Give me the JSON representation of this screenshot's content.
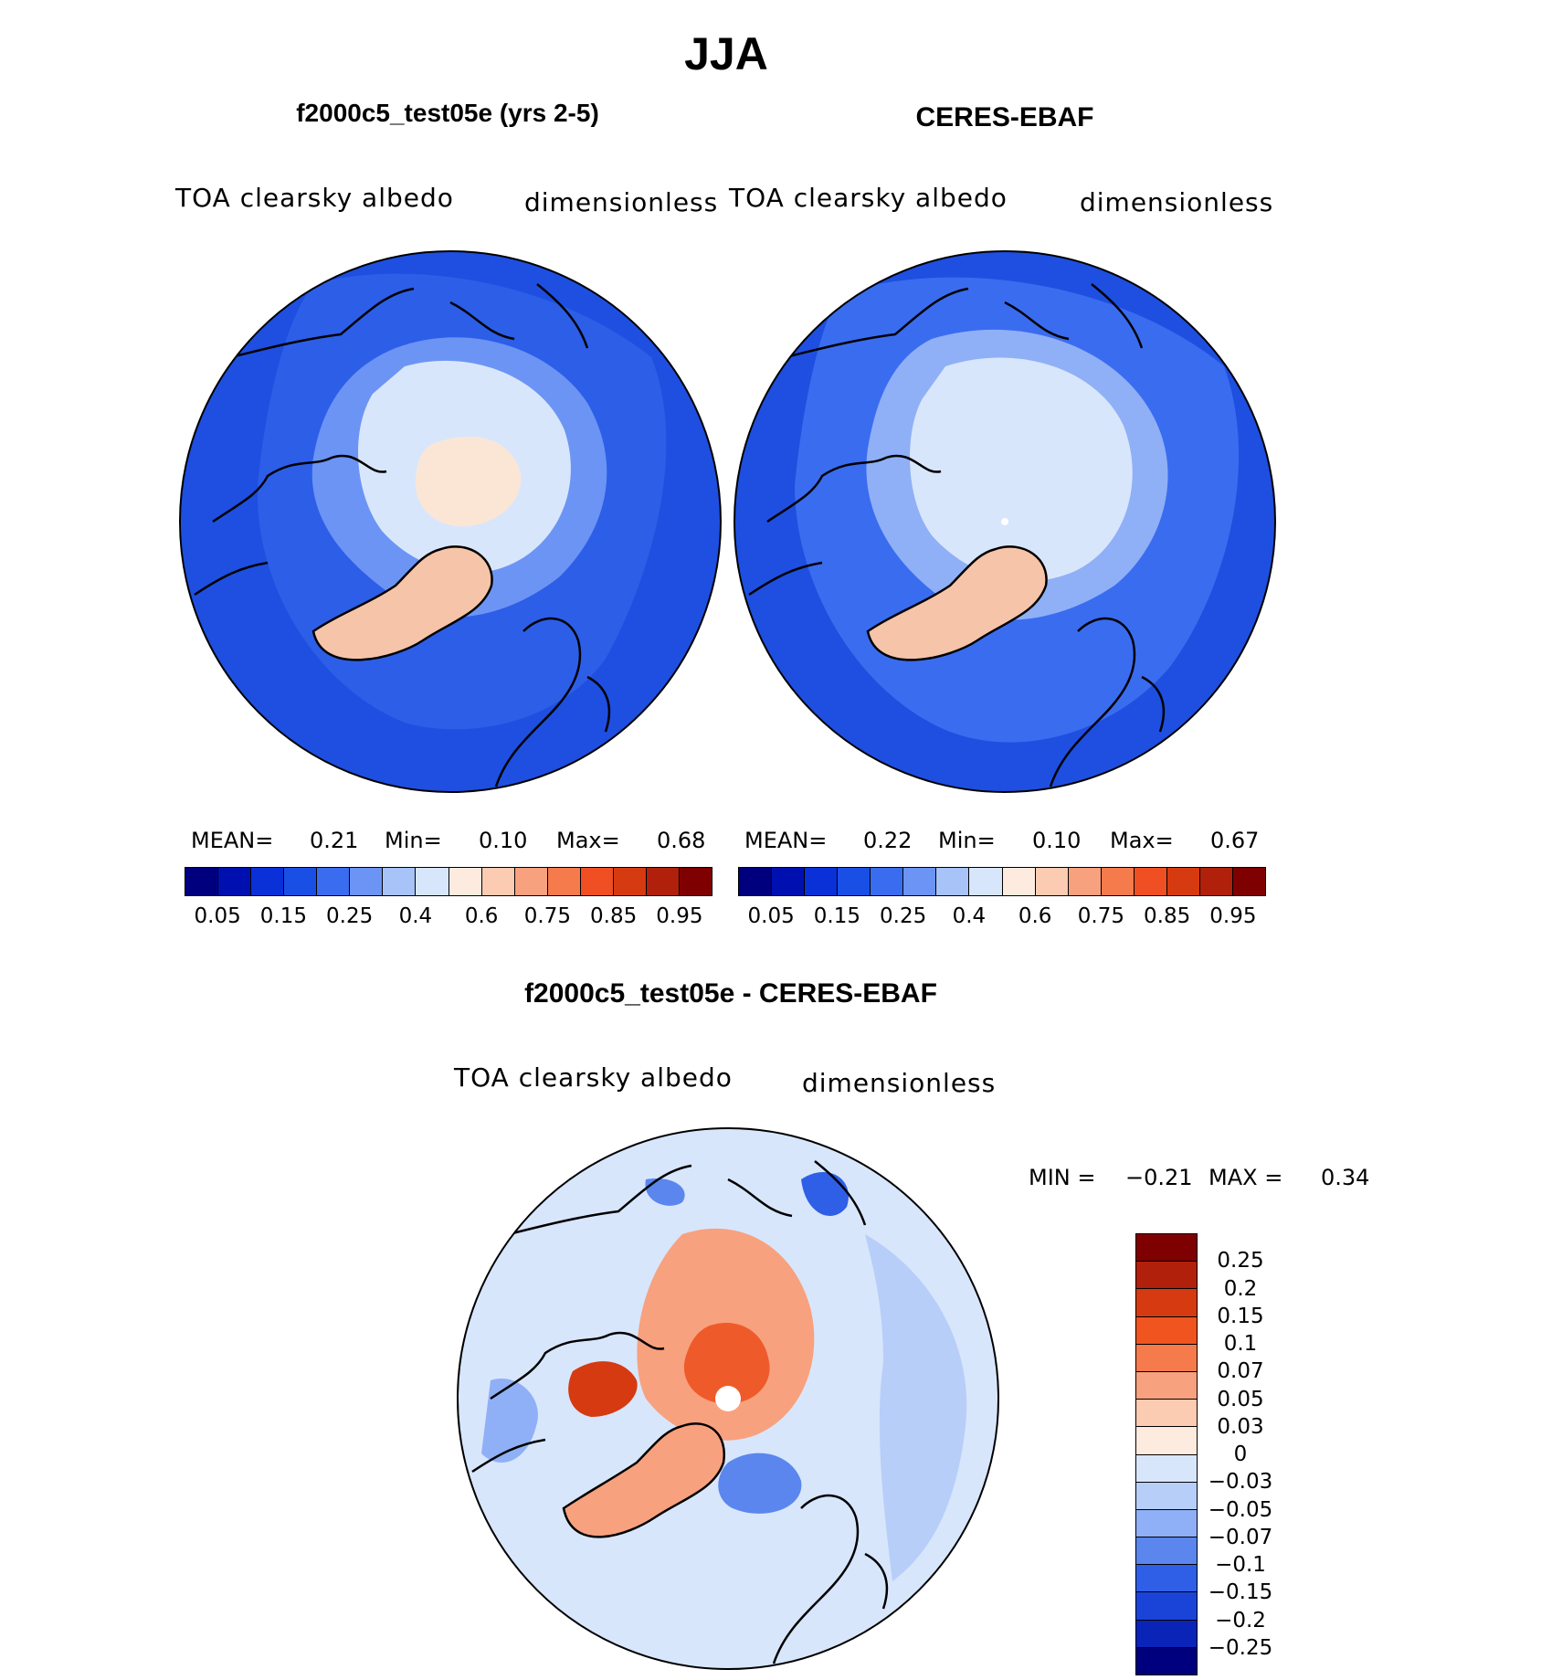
{
  "figure": {
    "season": "JJA",
    "colors": {
      "coastline": "#000000",
      "pole_dot": "#ffffff",
      "low_blue": "#1e4fe0",
      "mid_blue": "#5a8cf2",
      "pale_blue": "#d8e8fb",
      "cream": "#fbe9dc",
      "salmon": "#f6c4a8"
    }
  },
  "panels": [
    {
      "id": "model",
      "title": "f2000c5_test05e (yrs 2-5)",
      "variable": "TOA clearsky albedo",
      "units": "dimensionless",
      "stats": {
        "mean_label": "MEAN=",
        "mean": "0.21",
        "min_label": "Min=",
        "min": "0.10",
        "max_label": "Max=",
        "max": "0.68"
      }
    },
    {
      "id": "obs",
      "title": "CERES-EBAF",
      "variable": "TOA clearsky albedo",
      "units": "dimensionless",
      "stats": {
        "mean_label": "MEAN=",
        "mean": "0.22",
        "min_label": "Min=",
        "min": "0.10",
        "max_label": "Max=",
        "max": "0.67"
      }
    }
  ],
  "abs_colorbar": {
    "colors": [
      "#00007f",
      "#0010b0",
      "#0a30d8",
      "#1a4fe6",
      "#3a6cf0",
      "#6b94f4",
      "#a7c3f8",
      "#d8e6fc",
      "#fdebe0",
      "#fbcbb2",
      "#f8a17e",
      "#f57a4c",
      "#ef4f22",
      "#d63a10",
      "#b0200a",
      "#7f0000"
    ],
    "tick_labels": [
      "0.05",
      "0.15",
      "0.25",
      "0.4",
      "0.6",
      "0.75",
      "0.85",
      "0.95"
    ]
  },
  "diff_panel": {
    "title": "f2000c5_test05e - CERES-EBAF",
    "variable": "TOA clearsky albedo",
    "units": "dimensionless",
    "stats": {
      "min_label": "MIN =",
      "min": "−0.21",
      "max_label": "MAX =",
      "max": "0.34"
    },
    "colorbar": {
      "colors": [
        "#7f0000",
        "#b0200a",
        "#d63a10",
        "#f05520",
        "#f57a4c",
        "#f8a17e",
        "#fbcbb2",
        "#fdebe0",
        "#d8e6fc",
        "#b7cef9",
        "#8fb0f6",
        "#5a86ee",
        "#2f5fe6",
        "#1a44d8",
        "#0a24b8",
        "#00007f"
      ],
      "tick_labels": [
        "0.25",
        "0.2",
        "0.15",
        "0.1",
        "0.07",
        "0.05",
        "0.03",
        "0",
        "−0.03",
        "−0.05",
        "−0.07",
        "−0.1",
        "−0.15",
        "−0.2",
        "−0.25"
      ]
    }
  }
}
